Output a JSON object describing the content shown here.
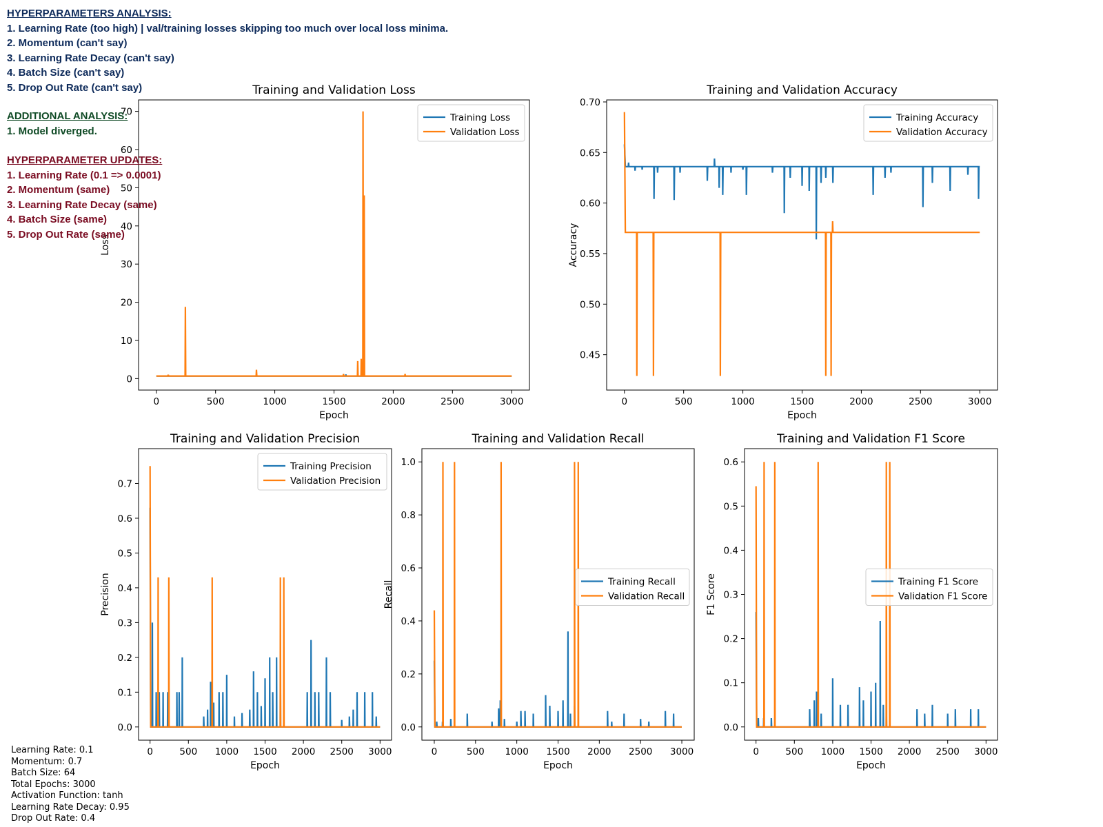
{
  "notes": {
    "analysis": {
      "heading": "HYPERPARAMETERS ANALYSIS:",
      "lines": [
        "1. Learning Rate (too high) | val/training losses skipping too much over local loss minima.",
        "2. Momentum (can't say)",
        "3. Learning Rate Decay (can't say)",
        "4. Batch Size (can't say)",
        "5. Drop Out Rate (can't say)"
      ]
    },
    "additional": {
      "heading": "ADDITIONAL ANALYSIS:",
      "lines": [
        "1. Model diverged."
      ]
    },
    "updates": {
      "heading": "HYPERPARAMETER UPDATES:",
      "lines": [
        "1. Learning Rate (0.1 => 0.0001)",
        "2. Momentum (same)",
        "3. Learning Rate Decay (same)",
        "4. Batch Size (same)",
        "5. Drop Out Rate (same)"
      ]
    }
  },
  "config": [
    "Learning Rate: 0.1",
    "Momentum: 0.7",
    "Batch Size: 64",
    "Total Epochs: 3000",
    "Activation Function: tanh",
    "Learning Rate Decay: 0.95",
    "Drop Out Rate: 0.4"
  ],
  "colors": {
    "training": "#1f77b4",
    "validation": "#ff7f0e"
  },
  "chart_data": [
    {
      "id": "loss",
      "type": "line",
      "title": "Training and Validation Loss",
      "xlabel": "Epoch",
      "ylabel": "Loss",
      "xlim": [
        -150,
        3150
      ],
      "ylim": [
        -3,
        73
      ],
      "xticks": [
        0,
        500,
        1000,
        1500,
        2000,
        2500,
        3000
      ],
      "yticks": [
        0,
        10,
        20,
        30,
        40,
        50,
        60,
        70
      ],
      "yticklabels": [
        "0",
        "10",
        "20",
        "30",
        "40",
        "50",
        "60",
        "70"
      ],
      "legend": "top-right",
      "series": [
        {
          "name": "Training Loss",
          "color": "#1f77b4",
          "base": 0.69,
          "spikes": [
            [
              100,
              1.0
            ],
            [
              1600,
              1.1
            ],
            [
              1750,
              0.9
            ]
          ]
        },
        {
          "name": "Validation Loss",
          "color": "#ff7f0e",
          "base": 0.69,
          "spikes": [
            [
              100,
              1.0
            ],
            [
              245,
              18.8
            ],
            [
              845,
              2.3
            ],
            [
              1580,
              1.2
            ],
            [
              1700,
              4.6
            ],
            [
              1730,
              5.2
            ],
            [
              1745,
              70.0
            ],
            [
              1755,
              48.0
            ],
            [
              2100,
              1.2
            ]
          ]
        }
      ]
    },
    {
      "id": "accuracy",
      "type": "line",
      "title": "Training and Validation Accuracy",
      "xlabel": "Epoch",
      "ylabel": "Accuracy",
      "xlim": [
        -150,
        3150
      ],
      "ylim": [
        0.415,
        0.702
      ],
      "xticks": [
        0,
        500,
        1000,
        1500,
        2000,
        2500,
        3000
      ],
      "yticks": [
        0.45,
        0.5,
        0.55,
        0.6,
        0.65,
        0.7
      ],
      "yticklabels": [
        "0.45",
        "0.50",
        "0.55",
        "0.60",
        "0.65",
        "0.70"
      ],
      "legend": "top-right",
      "series": [
        {
          "name": "Training Accuracy",
          "color": "#1f77b4",
          "base": 0.636,
          "start": 0.658,
          "spikes": [
            [
              35,
              0.64
            ],
            [
              90,
              0.632
            ],
            [
              150,
              0.633
            ],
            [
              250,
              0.604
            ],
            [
              280,
              0.63
            ],
            [
              420,
              0.603
            ],
            [
              470,
              0.63
            ],
            [
              700,
              0.622
            ],
            [
              760,
              0.644
            ],
            [
              800,
              0.615
            ],
            [
              830,
              0.608
            ],
            [
              900,
              0.63
            ],
            [
              1000,
              0.633
            ],
            [
              1030,
              0.608
            ],
            [
              1250,
              0.63
            ],
            [
              1350,
              0.59
            ],
            [
              1400,
              0.625
            ],
            [
              1500,
              0.617
            ],
            [
              1560,
              0.612
            ],
            [
              1620,
              0.564
            ],
            [
              1660,
              0.62
            ],
            [
              1700,
              0.625
            ],
            [
              1760,
              0.62
            ],
            [
              2100,
              0.608
            ],
            [
              2200,
              0.625
            ],
            [
              2250,
              0.63
            ],
            [
              2520,
              0.596
            ],
            [
              2600,
              0.62
            ],
            [
              2750,
              0.612
            ],
            [
              2900,
              0.628
            ],
            [
              2990,
              0.604
            ]
          ]
        },
        {
          "name": "Validation Accuracy",
          "color": "#ff7f0e",
          "base": 0.571,
          "start": 0.69,
          "spikes": [
            [
              105,
              0.429
            ],
            [
              245,
              0.429
            ],
            [
              810,
              0.429
            ],
            [
              1700,
              0.429
            ],
            [
              1745,
              0.429
            ],
            [
              1758,
              0.582
            ]
          ]
        }
      ]
    },
    {
      "id": "precision",
      "type": "line",
      "title": "Training and Validation Precision",
      "xlabel": "Epoch",
      "ylabel": "Precision",
      "xlim": [
        -150,
        3150
      ],
      "ylim": [
        -0.038,
        0.8
      ],
      "xticks": [
        0,
        500,
        1000,
        1500,
        2000,
        2500,
        3000
      ],
      "yticks": [
        0,
        0.1,
        0.2,
        0.3,
        0.4,
        0.5,
        0.6,
        0.7
      ],
      "yticklabels": [
        "0.0",
        "0.1",
        "0.2",
        "0.3",
        "0.4",
        "0.5",
        "0.6",
        "0.7"
      ],
      "legend": "top-right",
      "series": [
        {
          "name": "Training Precision",
          "color": "#1f77b4",
          "base": 0.0,
          "start": 0.63,
          "spikes": [
            [
              30,
              0.3
            ],
            [
              80,
              0.1
            ],
            [
              120,
              0.1
            ],
            [
              170,
              0.1
            ],
            [
              230,
              0.1
            ],
            [
              350,
              0.1
            ],
            [
              380,
              0.1
            ],
            [
              420,
              0.2
            ],
            [
              700,
              0.03
            ],
            [
              750,
              0.05
            ],
            [
              790,
              0.13
            ],
            [
              830,
              0.07
            ],
            [
              900,
              0.1
            ],
            [
              950,
              0.1
            ],
            [
              1000,
              0.15
            ],
            [
              1100,
              0.03
            ],
            [
              1200,
              0.04
            ],
            [
              1300,
              0.05
            ],
            [
              1350,
              0.16
            ],
            [
              1400,
              0.1
            ],
            [
              1450,
              0.06
            ],
            [
              1500,
              0.14
            ],
            [
              1560,
              0.2
            ],
            [
              1600,
              0.1
            ],
            [
              1650,
              0.2
            ],
            [
              1700,
              0.2
            ],
            [
              2050,
              0.1
            ],
            [
              2100,
              0.25
            ],
            [
              2150,
              0.1
            ],
            [
              2200,
              0.1
            ],
            [
              2300,
              0.2
            ],
            [
              2350,
              0.1
            ],
            [
              2500,
              0.02
            ],
            [
              2600,
              0.03
            ],
            [
              2650,
              0.05
            ],
            [
              2700,
              0.1
            ],
            [
              2800,
              0.1
            ],
            [
              2900,
              0.1
            ],
            [
              2950,
              0.03
            ]
          ]
        },
        {
          "name": "Validation Precision",
          "color": "#ff7f0e",
          "base": 0.0,
          "start": 0.75,
          "spikes": [
            [
              105,
              0.43
            ],
            [
              245,
              0.43
            ],
            [
              810,
              0.43
            ],
            [
              1700,
              0.43
            ],
            [
              1745,
              0.43
            ]
          ]
        }
      ]
    },
    {
      "id": "recall",
      "type": "line",
      "title": "Training and Validation Recall",
      "xlabel": "Epoch",
      "ylabel": "Recall",
      "xlim": [
        -150,
        3150
      ],
      "ylim": [
        -0.05,
        1.05
      ],
      "xticks": [
        0,
        500,
        1000,
        1500,
        2000,
        2500,
        3000
      ],
      "yticks": [
        0,
        0.2,
        0.4,
        0.6,
        0.8,
        1.0
      ],
      "yticklabels": [
        "0.0",
        "0.2",
        "0.4",
        "0.6",
        "0.8",
        "1.0"
      ],
      "legend": "right",
      "series": [
        {
          "name": "Training Recall",
          "color": "#1f77b4",
          "base": 0.0,
          "start": 0.25,
          "spikes": [
            [
              30,
              0.02
            ],
            [
              100,
              0.02
            ],
            [
              200,
              0.03
            ],
            [
              400,
              0.05
            ],
            [
              700,
              0.02
            ],
            [
              780,
              0.07
            ],
            [
              800,
              0.1
            ],
            [
              850,
              0.03
            ],
            [
              1000,
              0.02
            ],
            [
              1050,
              0.06
            ],
            [
              1100,
              0.06
            ],
            [
              1200,
              0.05
            ],
            [
              1350,
              0.12
            ],
            [
              1400,
              0.08
            ],
            [
              1500,
              0.06
            ],
            [
              1560,
              0.1
            ],
            [
              1620,
              0.36
            ],
            [
              1650,
              0.05
            ],
            [
              1700,
              0.08
            ],
            [
              2100,
              0.06
            ],
            [
              2150,
              0.02
            ],
            [
              2300,
              0.05
            ],
            [
              2500,
              0.03
            ],
            [
              2600,
              0.02
            ],
            [
              2800,
              0.06
            ],
            [
              2900,
              0.05
            ]
          ]
        },
        {
          "name": "Validation Recall",
          "color": "#ff7f0e",
          "base": 0.0,
          "start": 0.44,
          "spikes": [
            [
              105,
              1.0
            ],
            [
              245,
              1.0
            ],
            [
              810,
              1.0
            ],
            [
              1700,
              1.0
            ],
            [
              1745,
              1.0
            ]
          ]
        }
      ]
    },
    {
      "id": "f1",
      "type": "line",
      "title": "Training and Validation F1 Score",
      "xlabel": "Epoch",
      "ylabel": "F1 Score",
      "xlim": [
        -150,
        3150
      ],
      "ylim": [
        -0.03,
        0.63
      ],
      "xticks": [
        0,
        500,
        1000,
        1500,
        2000,
        2500,
        3000
      ],
      "yticks": [
        0,
        0.1,
        0.2,
        0.3,
        0.4,
        0.5,
        0.6
      ],
      "yticklabels": [
        "0.0",
        "0.1",
        "0.2",
        "0.3",
        "0.4",
        "0.5",
        "0.6"
      ],
      "legend": "right",
      "series": [
        {
          "name": "Training F1 Score",
          "color": "#1f77b4",
          "base": 0.0,
          "start": 0.26,
          "spikes": [
            [
              30,
              0.02
            ],
            [
              100,
              0.02
            ],
            [
              200,
              0.02
            ],
            [
              700,
              0.04
            ],
            [
              760,
              0.06
            ],
            [
              790,
              0.08
            ],
            [
              850,
              0.03
            ],
            [
              1000,
              0.11
            ],
            [
              1100,
              0.05
            ],
            [
              1200,
              0.05
            ],
            [
              1350,
              0.09
            ],
            [
              1400,
              0.06
            ],
            [
              1500,
              0.08
            ],
            [
              1560,
              0.1
            ],
            [
              1620,
              0.24
            ],
            [
              1660,
              0.05
            ],
            [
              1700,
              0.05
            ],
            [
              2100,
              0.04
            ],
            [
              2200,
              0.03
            ],
            [
              2300,
              0.05
            ],
            [
              2500,
              0.03
            ],
            [
              2600,
              0.04
            ],
            [
              2800,
              0.04
            ],
            [
              2900,
              0.04
            ]
          ]
        },
        {
          "name": "Validation F1 Score",
          "color": "#ff7f0e",
          "base": 0.0,
          "start": 0.545,
          "spikes": [
            [
              105,
              0.6
            ],
            [
              245,
              0.6
            ],
            [
              810,
              0.6
            ],
            [
              1700,
              0.6
            ],
            [
              1745,
              0.6
            ]
          ]
        }
      ]
    }
  ]
}
